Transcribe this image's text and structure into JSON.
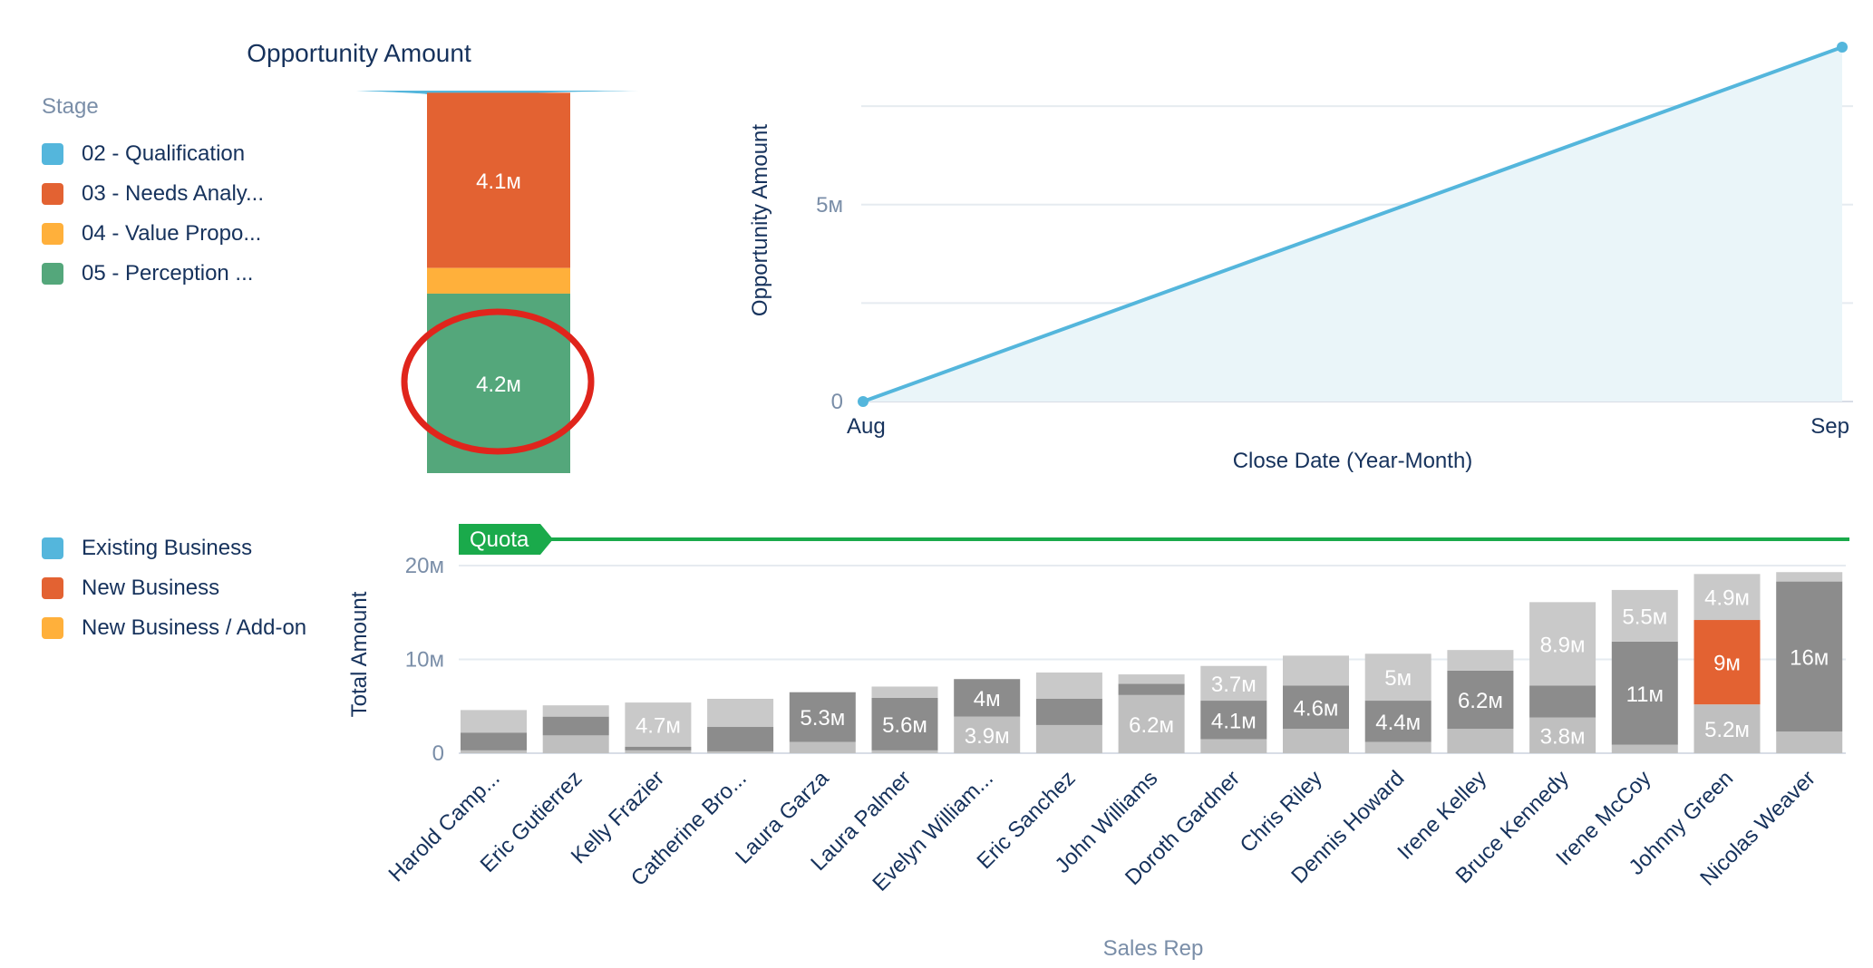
{
  "funnel": {
    "title": "Opportunity Amount",
    "legend_title": "Stage",
    "legend": [
      {
        "label": "02 - Qualification",
        "color": "#54b6dc"
      },
      {
        "label": "03 - Needs Analy...",
        "color": "#e36232"
      },
      {
        "label": "04 - Value Propo...",
        "color": "#ffb03b"
      },
      {
        "label": "05 - Perception ...",
        "color": "#54a77b"
      }
    ],
    "annotation": "red-circle-highlight"
  },
  "bar_legend": [
    {
      "label": "Existing Business",
      "color": "#54b6dc"
    },
    {
      "label": "New Business",
      "color": "#e36232"
    },
    {
      "label": "New Business / Add-on",
      "color": "#ffb03b"
    }
  ],
  "chart_data": [
    {
      "type": "bar",
      "title": "Opportunity Amount",
      "stacked": true,
      "series": [
        {
          "name": "02 - Qualification",
          "color": "#54b6dc",
          "value": 0.05
        },
        {
          "name": "03 - Needs Analy...",
          "color": "#e36232",
          "value": 4.1,
          "label": "4.1м"
        },
        {
          "name": "04 - Value Propo...",
          "color": "#ffb03b",
          "value": 0.6
        },
        {
          "name": "05 - Perception ...",
          "color": "#54a77b",
          "value": 4.2,
          "label": "4.2м"
        }
      ]
    },
    {
      "type": "area",
      "xlabel": "Close Date (Year-Month)",
      "ylabel": "Opportunity Amount",
      "categories": [
        "Aug",
        "Sep"
      ],
      "values": [
        0,
        9
      ],
      "yticks": [
        {
          "v": 0,
          "label": "0"
        },
        {
          "v": 5,
          "label": "5м"
        }
      ],
      "ylim": [
        0,
        9
      ],
      "grid": true,
      "color": "#54b6dc"
    },
    {
      "type": "bar",
      "stacked": true,
      "xlabel": "Sales Rep",
      "ylabel": "Total Amount",
      "ylim": [
        0,
        20
      ],
      "yticks": [
        {
          "v": 0,
          "label": "0"
        },
        {
          "v": 10,
          "label": "10м"
        },
        {
          "v": 20,
          "label": "20м"
        }
      ],
      "quota": {
        "label": "Quota",
        "value": 22.8,
        "color": "#1aaa4b"
      },
      "categories": [
        "Harold Camp...",
        "Eric Gutierrez",
        "Kelly Frazier",
        "Catherine Bro...",
        "Laura Garza",
        "Laura Palmer",
        "Evelyn William...",
        "Eric Sanchez",
        "John Williams",
        "Doroth Gardner",
        "Chris Riley",
        "Dennis Howard",
        "Irene Kelley",
        "Bruce Kennedy",
        "Irene McCoy",
        "Johnny Green",
        "Nicolas Weaver"
      ],
      "bars": [
        [
          {
            "v": 0.3,
            "c": "#bfbfbf"
          },
          {
            "v": 1.9,
            "c": "#8c8c8c"
          },
          {
            "v": 2.4,
            "c": "#c9c9c9"
          }
        ],
        [
          {
            "v": 1.9,
            "c": "#bfbfbf"
          },
          {
            "v": 2.0,
            "c": "#8c8c8c"
          },
          {
            "v": 1.2,
            "c": "#c9c9c9"
          }
        ],
        [
          {
            "v": 0.3,
            "c": "#bfbfbf"
          },
          {
            "v": 0.4,
            "c": "#8c8c8c"
          },
          {
            "v": 4.7,
            "c": "#c9c9c9",
            "l": "4.7м"
          }
        ],
        [
          {
            "v": 0.2,
            "c": "#bfbfbf"
          },
          {
            "v": 2.6,
            "c": "#8c8c8c"
          },
          {
            "v": 3.0,
            "c": "#c9c9c9"
          }
        ],
        [
          {
            "v": 1.2,
            "c": "#bfbfbf"
          },
          {
            "v": 5.3,
            "c": "#8c8c8c",
            "l": "5.3м"
          }
        ],
        [
          {
            "v": 0.3,
            "c": "#bfbfbf"
          },
          {
            "v": 5.6,
            "c": "#8c8c8c",
            "l": "5.6м"
          },
          {
            "v": 1.2,
            "c": "#c9c9c9"
          }
        ],
        [
          {
            "v": 3.9,
            "c": "#bfbfbf",
            "l": "3.9м"
          },
          {
            "v": 4.0,
            "c": "#8c8c8c",
            "l": "4м"
          }
        ],
        [
          {
            "v": 3.0,
            "c": "#bfbfbf"
          },
          {
            "v": 2.8,
            "c": "#8c8c8c"
          },
          {
            "v": 2.8,
            "c": "#c9c9c9"
          }
        ],
        [
          {
            "v": 6.2,
            "c": "#bfbfbf",
            "l": "6.2м"
          },
          {
            "v": 1.2,
            "c": "#8c8c8c"
          },
          {
            "v": 1.0,
            "c": "#c9c9c9"
          }
        ],
        [
          {
            "v": 1.5,
            "c": "#bfbfbf"
          },
          {
            "v": 4.1,
            "c": "#8c8c8c",
            "l": "4.1м"
          },
          {
            "v": 3.7,
            "c": "#c9c9c9",
            "l": "3.7м"
          }
        ],
        [
          {
            "v": 2.6,
            "c": "#bfbfbf"
          },
          {
            "v": 4.6,
            "c": "#8c8c8c",
            "l": "4.6м"
          },
          {
            "v": 3.2,
            "c": "#c9c9c9"
          }
        ],
        [
          {
            "v": 1.2,
            "c": "#bfbfbf"
          },
          {
            "v": 4.4,
            "c": "#8c8c8c",
            "l": "4.4м"
          },
          {
            "v": 5.0,
            "c": "#c9c9c9",
            "l": "5м"
          }
        ],
        [
          {
            "v": 2.6,
            "c": "#bfbfbf"
          },
          {
            "v": 6.2,
            "c": "#8c8c8c",
            "l": "6.2м"
          },
          {
            "v": 2.2,
            "c": "#c9c9c9"
          }
        ],
        [
          {
            "v": 3.8,
            "c": "#bfbfbf",
            "l": "3.8м"
          },
          {
            "v": 3.4,
            "c": "#8c8c8c"
          },
          {
            "v": 8.9,
            "c": "#c9c9c9",
            "l": "8.9м"
          }
        ],
        [
          {
            "v": 0.9,
            "c": "#bfbfbf"
          },
          {
            "v": 11,
            "c": "#8c8c8c",
            "l": "11м"
          },
          {
            "v": 5.5,
            "c": "#c9c9c9",
            "l": "5.5м"
          }
        ],
        [
          {
            "v": 5.2,
            "c": "#bfbfbf",
            "l": "5.2м"
          },
          {
            "v": 9,
            "c": "#e36232",
            "l": "9м"
          },
          {
            "v": 4.9,
            "c": "#c9c9c9",
            "l": "4.9м"
          }
        ],
        [
          {
            "v": 2.3,
            "c": "#bfbfbf"
          },
          {
            "v": 16,
            "c": "#8c8c8c",
            "l": "16м"
          },
          {
            "v": 1.0,
            "c": "#c9c9c9"
          }
        ]
      ]
    }
  ]
}
